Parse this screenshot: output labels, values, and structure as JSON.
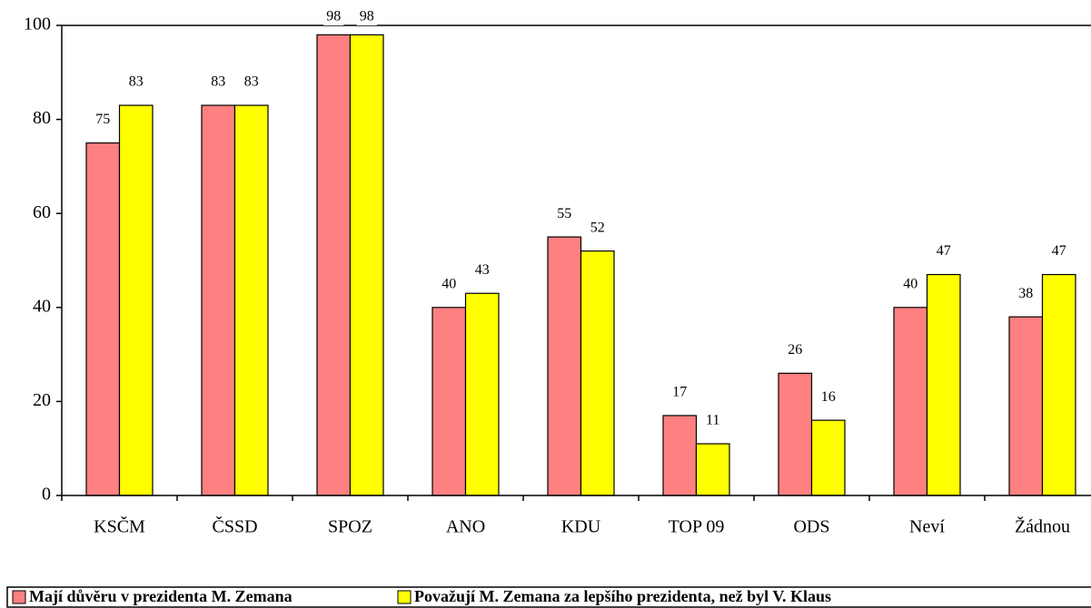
{
  "chart_data": {
    "type": "bar",
    "categories": [
      "KSČM",
      "ČSSD",
      "SPOZ",
      "ANO",
      "KDU",
      "TOP 09",
      "ODS",
      "Neví",
      "Žádnou"
    ],
    "series": [
      {
        "name": "Mají důvěru v prezidenta M. Zemana",
        "color": "#ff8080",
        "values": [
          75,
          83,
          98,
          40,
          55,
          17,
          26,
          40,
          38
        ]
      },
      {
        "name": "Považují M. Zemana za lepšího prezidenta, než byl V. Klaus",
        "color": "#ffff00",
        "values": [
          83,
          83,
          98,
          43,
          52,
          11,
          16,
          47,
          47
        ]
      }
    ],
    "ylim": [
      0,
      100
    ],
    "yticks": [
      0,
      20,
      40,
      60,
      80,
      100
    ],
    "grid": false,
    "legend": "bottom"
  }
}
